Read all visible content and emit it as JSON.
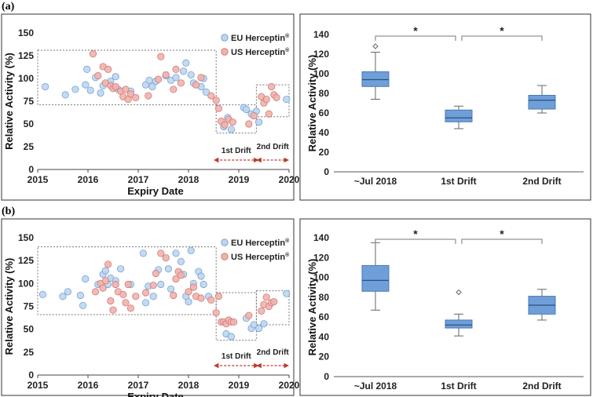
{
  "panels": [
    {
      "label": "(a)",
      "scatter": {
        "type": "scatter",
        "xlabel": "Expiry Date",
        "ylabel": "Relative Activity (%)",
        "xlim": [
          2015,
          2020
        ],
        "ylim": [
          0,
          150
        ],
        "xticks": [
          "2015",
          "2016",
          "2017",
          "2018",
          "2019",
          "2020"
        ],
        "yticks": [
          "0",
          "25",
          "50",
          "75",
          "100",
          "125",
          "150"
        ],
        "legend": {
          "eu": "EU Herceptin",
          "us": "US Herceptin",
          "mark": "®"
        },
        "drift_labels": [
          "1st Drift",
          "2nd Drift"
        ],
        "colors": {
          "eu_fill": "#bcd6f2",
          "eu_stroke": "#7aa2d0",
          "us_fill": "#f0b2ae",
          "us_stroke": "#d27a74"
        },
        "regions": [
          {
            "name": "~Jul 2018",
            "x": [
              2015,
              2018.55
            ],
            "y": [
              71,
              131
            ]
          },
          {
            "name": "1st Drift",
            "x": [
              2018.55,
              2019.35
            ],
            "y": [
              40,
              71
            ]
          },
          {
            "name": "2nd Drift",
            "x": [
              2019.35,
              2020
            ],
            "y": [
              58,
              93
            ]
          }
        ],
        "drift_arrows": [
          [
            2018.55,
            2019.35
          ],
          [
            2019.4,
            2019.95
          ]
        ],
        "series": [
          {
            "name": "EU Herceptin",
            "points": [
              [
                2015.15,
                91
              ],
              [
                2015.55,
                82
              ],
              [
                2015.75,
                88
              ],
              [
                2015.95,
                93
              ],
              [
                2016.05,
                87
              ],
              [
                2015.98,
                110
              ],
              [
                2016.15,
                101
              ],
              [
                2016.25,
                84
              ],
              [
                2016.3,
                92
              ],
              [
                2016.45,
                97
              ],
              [
                2016.55,
                102
              ],
              [
                2016.6,
                88
              ],
              [
                2016.85,
                86
              ],
              [
                2017.15,
                93
              ],
              [
                2017.22,
                98
              ],
              [
                2017.28,
                91
              ],
              [
                2017.35,
                97
              ],
              [
                2017.55,
                103
              ],
              [
                2017.65,
                98
              ],
              [
                2017.75,
                101
              ],
              [
                2017.9,
                108
              ],
              [
                2017.95,
                117
              ],
              [
                2018.05,
                104
              ],
              [
                2018.1,
                95
              ],
              [
                2018.25,
                91
              ],
              [
                2018.3,
                100
              ],
              [
                2018.35,
                85
              ],
              [
                2018.7,
                47
              ],
              [
                2018.78,
                57
              ],
              [
                2018.85,
                44
              ],
              [
                2019.1,
                68
              ],
              [
                2019.15,
                66
              ],
              [
                2019.25,
                61
              ],
              [
                2019.35,
                64
              ],
              [
                2019.4,
                52
              ],
              [
                2019.95,
                77
              ]
            ]
          },
          {
            "name": "US Herceptin",
            "points": [
              [
                2016.1,
                127
              ],
              [
                2016.2,
                103
              ],
              [
                2016.3,
                113
              ],
              [
                2016.35,
                95
              ],
              [
                2016.4,
                110
              ],
              [
                2016.45,
                92
              ],
              [
                2016.5,
                89
              ],
              [
                2016.55,
                91
              ],
              [
                2016.65,
                86
              ],
              [
                2016.7,
                80
              ],
              [
                2016.75,
                88
              ],
              [
                2016.8,
                77
              ],
              [
                2016.85,
                83
              ],
              [
                2016.95,
                79
              ],
              [
                2017.2,
                81
              ],
              [
                2017.4,
                99
              ],
              [
                2017.45,
                124
              ],
              [
                2017.55,
                104
              ],
              [
                2017.7,
                88
              ],
              [
                2017.75,
                110
              ],
              [
                2017.85,
                95
              ],
              [
                2018.15,
                93
              ],
              [
                2018.25,
                101
              ],
              [
                2018.45,
                81
              ],
              [
                2018.55,
                76
              ],
              [
                2018.6,
                67
              ],
              [
                2018.65,
                53
              ],
              [
                2018.72,
                49
              ],
              [
                2018.8,
                55
              ],
              [
                2018.88,
                52
              ],
              [
                2019.2,
                50
              ],
              [
                2019.3,
                59
              ],
              [
                2019.45,
                80
              ],
              [
                2019.5,
                73
              ],
              [
                2019.55,
                77
              ],
              [
                2019.6,
                61
              ],
              [
                2019.65,
                91
              ],
              [
                2019.7,
                82
              ],
              [
                2019.75,
                79
              ]
            ]
          }
        ]
      },
      "boxplot": {
        "type": "box",
        "ylabel": "Relative Activity (%)",
        "ylim": [
          0,
          140
        ],
        "yticks": [
          "0",
          "20",
          "40",
          "60",
          "80",
          "100",
          "120",
          "140"
        ],
        "categories": [
          "~Jul 2018",
          "1st Drift",
          "2nd Drift"
        ],
        "box_color": "#6f9fd8",
        "box_stroke": "#4a78b4",
        "significance": [
          "*",
          "*"
        ],
        "boxes": [
          {
            "min": 74,
            "q1": 87,
            "median": 94,
            "q3": 102,
            "max": 122,
            "outliers": [
              128
            ]
          },
          {
            "min": 44,
            "q1": 51,
            "median": 55,
            "q3": 63,
            "max": 67,
            "outliers": []
          },
          {
            "min": 60,
            "q1": 64,
            "median": 73,
            "q3": 78,
            "max": 88,
            "outliers": []
          }
        ]
      }
    },
    {
      "label": "(b)",
      "scatter": {
        "type": "scatter",
        "xlabel": "Expiry Date",
        "ylabel": "Relative Activity (%)",
        "xlim": [
          2015,
          2020
        ],
        "ylim": [
          0,
          150
        ],
        "xticks": [
          "2015",
          "2016",
          "2017",
          "2018",
          "2019",
          "2020"
        ],
        "yticks": [
          "0",
          "25",
          "50",
          "75",
          "100",
          "125",
          "150"
        ],
        "legend": {
          "eu": "EU Herceptin",
          "us": "US Herceptin",
          "mark": "®"
        },
        "drift_labels": [
          "1st Drift",
          "2nd Drift"
        ],
        "colors": {
          "eu_fill": "#bcd6f2",
          "eu_stroke": "#7aa2d0",
          "us_fill": "#f0b2ae",
          "us_stroke": "#d27a74"
        },
        "regions": [
          {
            "name": "~Jul 2018",
            "x": [
              2015,
              2018.55
            ],
            "y": [
              66,
              140
            ]
          },
          {
            "name": "1st Drift",
            "x": [
              2018.55,
              2019.35
            ],
            "y": [
              38,
              90
            ]
          },
          {
            "name": "2nd Drift",
            "x": [
              2019.35,
              2020
            ],
            "y": [
              55,
              92
            ]
          }
        ],
        "drift_arrows": [
          [
            2018.55,
            2019.35
          ],
          [
            2019.4,
            2019.95
          ]
        ],
        "series": [
          {
            "name": "EU Herceptin",
            "points": [
              [
                2015.1,
                88
              ],
              [
                2015.5,
                86
              ],
              [
                2015.6,
                91
              ],
              [
                2015.85,
                87
              ],
              [
                2015.9,
                76
              ],
              [
                2015.95,
                105
              ],
              [
                2016.2,
                99
              ],
              [
                2016.3,
                110
              ],
              [
                2016.35,
                114
              ],
              [
                2016.4,
                99
              ],
              [
                2016.45,
                106
              ],
              [
                2016.55,
                103
              ],
              [
                2016.65,
                116
              ],
              [
                2016.85,
                99
              ],
              [
                2017.1,
                133
              ],
              [
                2017.15,
                79
              ],
              [
                2017.2,
                97
              ],
              [
                2017.3,
                86
              ],
              [
                2017.4,
                115
              ],
              [
                2017.45,
                99
              ],
              [
                2017.6,
                116
              ],
              [
                2017.65,
                94
              ],
              [
                2017.75,
                133
              ],
              [
                2017.85,
                124
              ],
              [
                2017.9,
                110
              ],
              [
                2017.95,
                86
              ],
              [
                2018.0,
                80
              ],
              [
                2018.05,
                136
              ],
              [
                2018.1,
                100
              ],
              [
                2018.2,
                113
              ],
              [
                2018.25,
                108
              ],
              [
                2018.3,
                99
              ],
              [
                2018.4,
                86
              ],
              [
                2018.75,
                45
              ],
              [
                2018.85,
                42
              ],
              [
                2019.15,
                62
              ],
              [
                2019.25,
                51
              ],
              [
                2019.3,
                55
              ],
              [
                2019.4,
                51
              ],
              [
                2019.5,
                56
              ],
              [
                2019.95,
                89
              ]
            ]
          },
          {
            "name": "US Herceptin",
            "points": [
              [
                2016.15,
                91
              ],
              [
                2016.25,
                100
              ],
              [
                2016.3,
                95
              ],
              [
                2016.35,
                103
              ],
              [
                2016.4,
                121
              ],
              [
                2016.45,
                81
              ],
              [
                2016.5,
                71
              ],
              [
                2016.55,
                99
              ],
              [
                2016.6,
                91
              ],
              [
                2016.7,
                88
              ],
              [
                2016.75,
                79
              ],
              [
                2016.8,
                99
              ],
              [
                2016.85,
                73
              ],
              [
                2016.95,
                86
              ],
              [
                2017.15,
                90
              ],
              [
                2017.3,
                98
              ],
              [
                2017.35,
                111
              ],
              [
                2017.45,
                133
              ],
              [
                2017.55,
                128
              ],
              [
                2017.7,
                87
              ],
              [
                2017.75,
                105
              ],
              [
                2017.8,
                113
              ],
              [
                2017.85,
                109
              ],
              [
                2018.0,
                91
              ],
              [
                2018.1,
                96
              ],
              [
                2018.15,
                86
              ],
              [
                2018.25,
                84
              ],
              [
                2018.45,
                82
              ],
              [
                2018.55,
                68
              ],
              [
                2018.6,
                86
              ],
              [
                2018.65,
                58
              ],
              [
                2018.7,
                58
              ],
              [
                2018.75,
                56
              ],
              [
                2018.8,
                60
              ],
              [
                2018.85,
                58
              ],
              [
                2018.9,
                58
              ],
              [
                2019.2,
                65
              ],
              [
                2019.45,
                70
              ],
              [
                2019.5,
                77
              ],
              [
                2019.55,
                85
              ],
              [
                2019.6,
                75
              ],
              [
                2019.65,
                79
              ],
              [
                2019.7,
                80
              ]
            ]
          }
        ]
      },
      "boxplot": {
        "type": "box",
        "ylabel": "Relative Activity (%)",
        "ylim": [
          0,
          140
        ],
        "yticks": [
          "0",
          "20",
          "40",
          "60",
          "80",
          "100",
          "120",
          "140"
        ],
        "categories": [
          "~Jul 2018",
          "1st Drift",
          "2nd Drift"
        ],
        "box_color": "#6f9fd8",
        "box_stroke": "#4a78b4",
        "significance": [
          "*",
          "*"
        ],
        "boxes": [
          {
            "min": 67,
            "q1": 86,
            "median": 97,
            "q3": 112,
            "max": 135,
            "outliers": []
          },
          {
            "min": 41,
            "q1": 49,
            "median": 52,
            "q3": 57,
            "max": 63,
            "outliers": [
              85
            ]
          },
          {
            "min": 57,
            "q1": 63,
            "median": 72,
            "q3": 81,
            "max": 88,
            "outliers": []
          }
        ]
      }
    }
  ]
}
